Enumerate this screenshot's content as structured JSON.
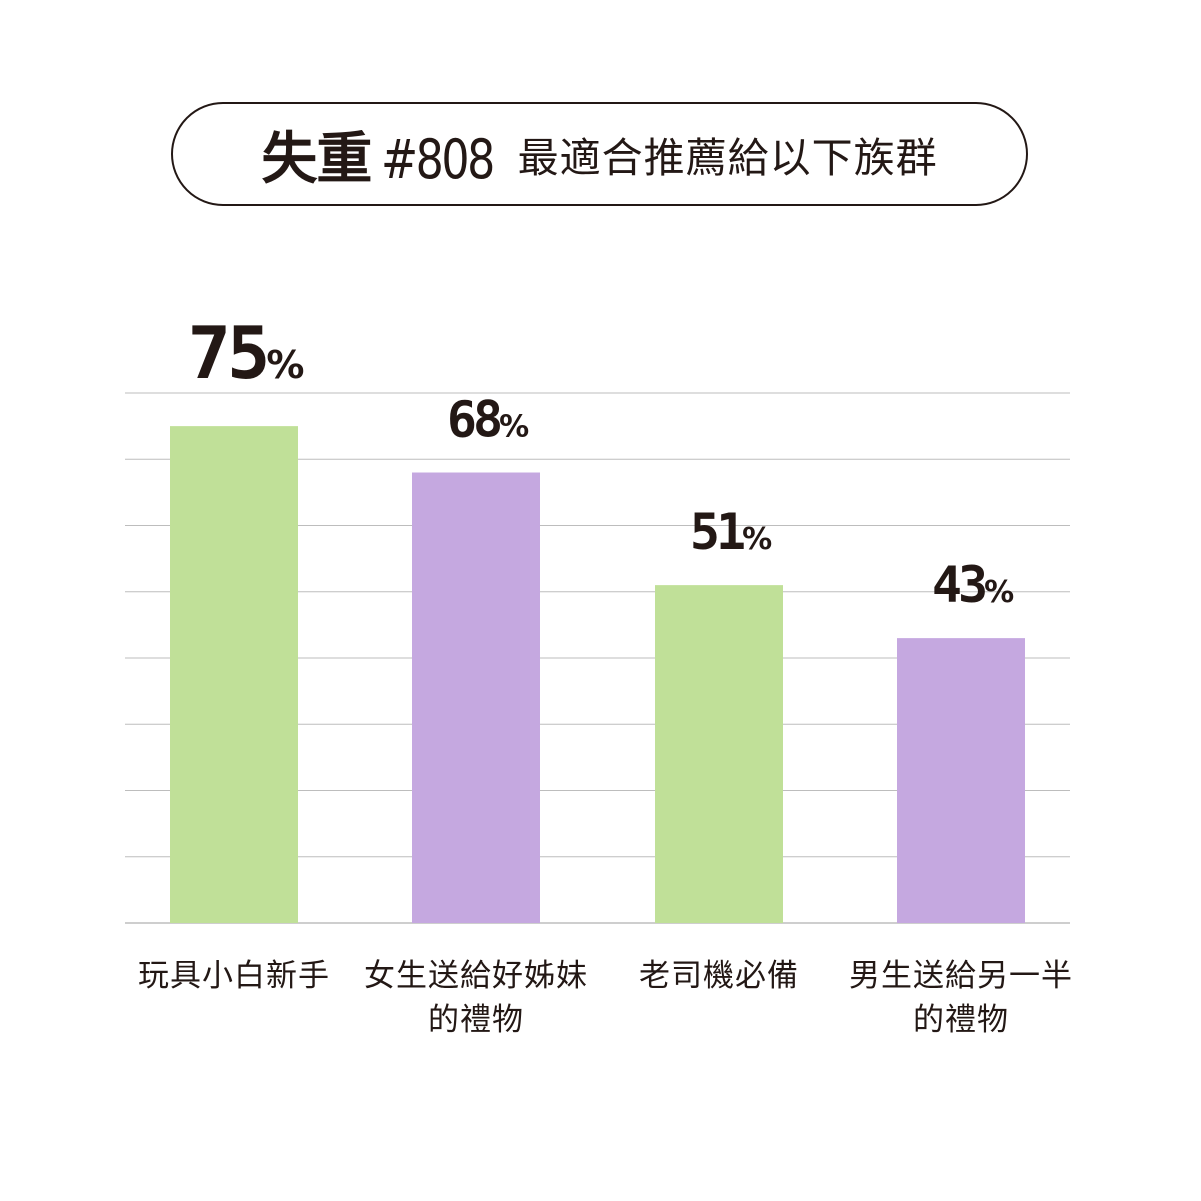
{
  "header": {
    "title_bold": "失重",
    "title_number": "#808",
    "title_rest": "最適合推薦給以下族群"
  },
  "chart_data": {
    "type": "bar",
    "categories": [
      [
        "玩具小白新手"
      ],
      [
        "女生送給好姊妹",
        "的禮物"
      ],
      [
        "老司機必備"
      ],
      [
        "男生送給另一半",
        "的禮物"
      ]
    ],
    "values": [
      75,
      68,
      51,
      43
    ],
    "value_suffix": "%",
    "bar_colors": [
      "#c0e098",
      "#c5a8e0",
      "#c0e098",
      "#c5a8e0"
    ],
    "ylim": [
      0,
      80
    ],
    "grid": true,
    "gridline_color": "#bdbdbd",
    "text_color": "#231815"
  }
}
